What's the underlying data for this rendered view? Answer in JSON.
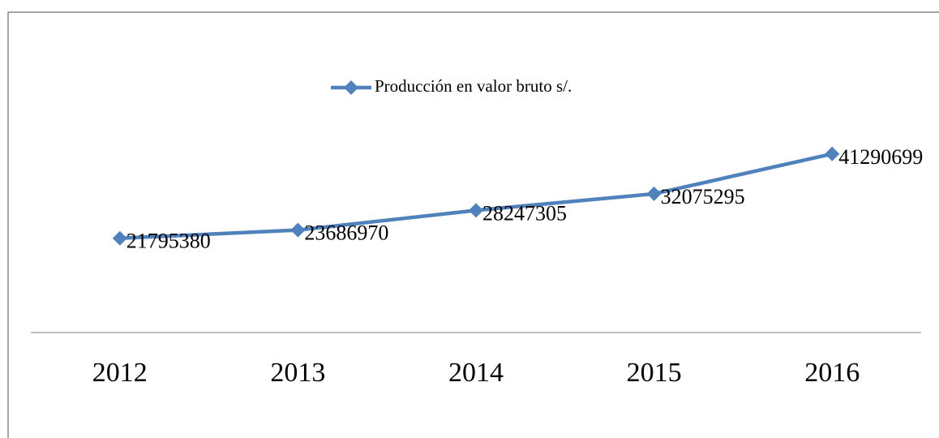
{
  "chart_data": {
    "type": "line",
    "categories": [
      "2012",
      "2013",
      "2014",
      "2015",
      "2016"
    ],
    "series": [
      {
        "name": "Producción en valor bruto s/.",
        "color": "#4f81bd",
        "values": [
          21795380,
          23686970,
          28247305,
          32075295,
          41290699
        ]
      }
    ],
    "ylim": [
      0,
      45000000
    ],
    "legend": "top"
  }
}
